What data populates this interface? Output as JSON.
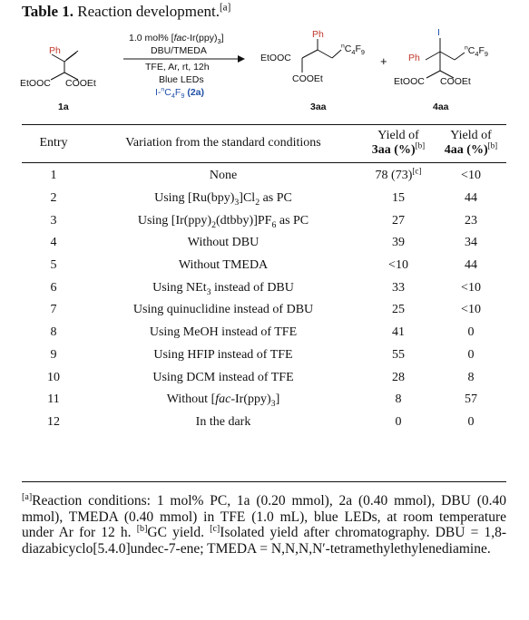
{
  "title": {
    "label": "Table 1.",
    "text": "Reaction development.",
    "note": "[a]"
  },
  "scheme": {
    "sm_ph": "Ph",
    "sm_left_ester": "EtOOC",
    "sm_right_ester": "COOEt",
    "sm_id": "1a",
    "cond1": "1.0 mol% [fac-Ir(ppy)3]",
    "cond2": "DBU/TMEDA",
    "cond3": "TFE, Ar, rt, 12h",
    "cond4": "Blue LEDs",
    "cond5": "I-nC4F9 (2a)",
    "p1_ph": "Ph",
    "p1_ester_left": "EtOOC",
    "p1_ester_bottom": "COOEt",
    "p1_rf": "nC4F9",
    "p1_id": "3aa",
    "plus": "+",
    "p2_i": "I",
    "p2_ph": "Ph",
    "p2_ester_left": "EtOOC",
    "p2_ester_right": "COOEt",
    "p2_rf": "nC4F9",
    "p2_id": "4aa"
  },
  "table": {
    "headers": {
      "entry": "Entry",
      "variation": "Variation from the standard conditions",
      "yield3_line1": "Yield of",
      "yield3_line2": "3aa (%)",
      "yield3_note": "[b]",
      "yield4_line1": "Yield of",
      "yield4_line2": "4aa (%)",
      "yield4_note": "[b]"
    },
    "rows": [
      {
        "entry": "1",
        "variation": "None",
        "y3": "78 (73)",
        "y3_note": "[c]",
        "y4": "<10"
      },
      {
        "entry": "2",
        "variation": "Using [Ru(bpy)3]Cl2 as PC",
        "y3": "15",
        "y4": "44"
      },
      {
        "entry": "3",
        "variation": "Using [Ir(ppy)2(dtbby)]PF6 as PC",
        "y3": "27",
        "y4": "23"
      },
      {
        "entry": "4",
        "variation": "Without DBU",
        "y3": "39",
        "y4": "34"
      },
      {
        "entry": "5",
        "variation": "Without TMEDA",
        "y3": "<10",
        "y4": "44"
      },
      {
        "entry": "6",
        "variation": "Using NEt3 instead of DBU",
        "y3": "33",
        "y4": "<10"
      },
      {
        "entry": "7",
        "variation": "Using quinuclidine instead of DBU",
        "y3": "25",
        "y4": "<10"
      },
      {
        "entry": "8",
        "variation": "Using MeOH instead of TFE",
        "y3": "41",
        "y4": "0"
      },
      {
        "entry": "9",
        "variation": "Using HFIP instead of TFE",
        "y3": "55",
        "y4": "0"
      },
      {
        "entry": "10",
        "variation": "Using DCM instead of TFE",
        "y3": "28",
        "y4": "8"
      },
      {
        "entry": "11",
        "variation": "Without [fac-Ir(ppy)3]",
        "y3": "8",
        "y4": "57"
      },
      {
        "entry": "12",
        "variation": "In the dark",
        "y3": "0",
        "y4": "0"
      }
    ]
  },
  "footnotes": {
    "a_mark": "[a]",
    "a_text": "Reaction conditions: 1 mol% PC, 1a (0.20 mmol), 2a (0.40 mmol), DBU (0.40 mmol), TMEDA (0.40 mmol) in TFE (1.0 mL), blue LEDs, at room temperature under Ar for 12 h.",
    "b_mark": "[b]",
    "b_text": "GC yield.",
    "c_mark": "[c]",
    "c_text": "Isolated yield after chromatography. DBU = 1,8-diazabicyclo[5.4.0]undec-7-ene; TMEDA = N,N,N,N′-tetramethylethylenediamine."
  }
}
